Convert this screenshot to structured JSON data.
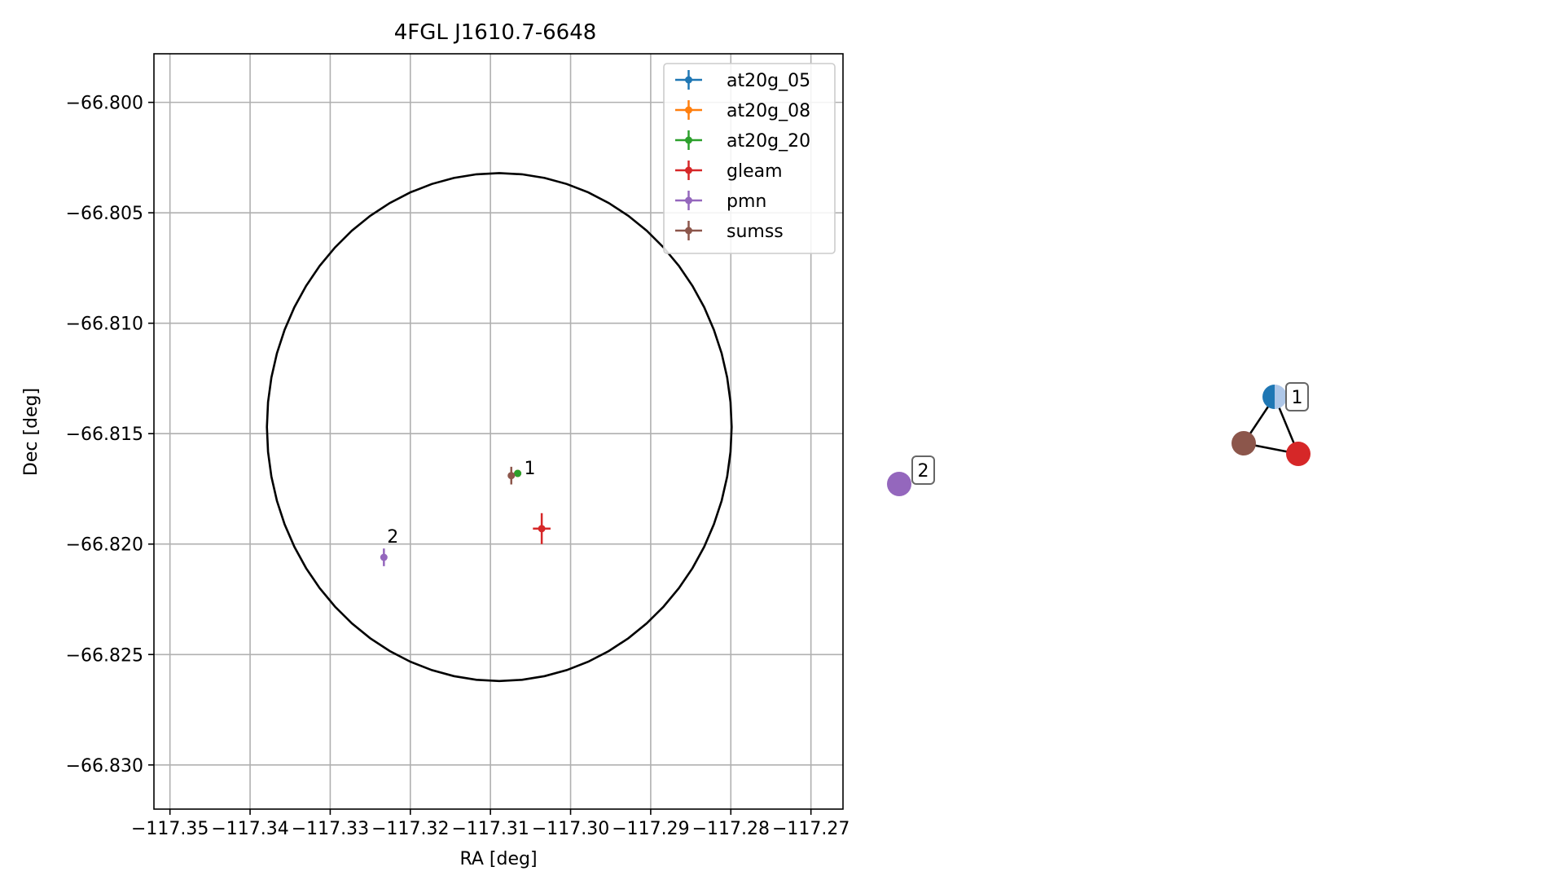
{
  "chart_data": [
    {
      "type": "scatter",
      "title": "4FGL J1610.7-6648",
      "xlabel": "RA [deg]",
      "ylabel": "Dec [deg]",
      "xlim": [
        -117.352,
        -117.266
      ],
      "ylim": [
        -66.832,
        -66.7978
      ],
      "grid": true,
      "x_ticks": [
        -117.35,
        -117.34,
        -117.33,
        -117.32,
        -117.31,
        -117.3,
        -117.29,
        -117.28,
        -117.27
      ],
      "x_tick_labels": [
        "−117.35",
        "−117.34",
        "−117.33",
        "−117.32",
        "−117.31",
        "−117.30",
        "−117.29",
        "−117.28",
        "−117.27"
      ],
      "y_ticks": [
        -66.8,
        -66.805,
        -66.81,
        -66.815,
        -66.82,
        -66.825,
        -66.83
      ],
      "y_tick_labels": [
        "−66.800",
        "−66.805",
        "−66.810",
        "−66.815",
        "−66.820",
        "−66.825",
        "−66.830"
      ],
      "legend_position": "top-right",
      "series": [
        {
          "name": "at20g_05",
          "color": "#1f77b4",
          "points": [
            {
              "x": -117.3066,
              "y": -66.8168,
              "xerr": 0.0004,
              "yerr": 0.0001
            }
          ]
        },
        {
          "name": "at20g_08",
          "color": "#ff7f0e",
          "points": [
            {
              "x": -117.3066,
              "y": -66.8168,
              "xerr": 0.0004,
              "yerr": 0.0001
            }
          ]
        },
        {
          "name": "at20g_20",
          "color": "#2ca02c",
          "points": [
            {
              "x": -117.3066,
              "y": -66.8168,
              "xerr": 0.0004,
              "yerr": 0.0001
            }
          ]
        },
        {
          "name": "gleam",
          "color": "#d62728",
          "points": [
            {
              "x": -117.3036,
              "y": -66.8193,
              "xerr": 0.0011,
              "yerr": 0.0007
            }
          ]
        },
        {
          "name": "pmn",
          "color": "#9467bd",
          "points": [
            {
              "x": -117.3233,
              "y": -66.8206,
              "xerr": 0.0002,
              "yerr": 0.0004
            }
          ]
        },
        {
          "name": "sumss",
          "color": "#8c564b",
          "points": [
            {
              "x": -117.3074,
              "y": -66.8169,
              "xerr": 0.0004,
              "yerr": 0.0004
            }
          ]
        }
      ],
      "circle": {
        "center_x": -117.3089,
        "center_y": -66.8147,
        "radius_x": 0.029,
        "radius_y": 0.0115
      },
      "annotations": [
        {
          "text": "1",
          "x": -117.3058,
          "y": -66.8168
        },
        {
          "text": "2",
          "x": -117.3229,
          "y": -66.8199
        }
      ]
    },
    {
      "type": "network",
      "nodes": [
        {
          "id": "2",
          "label": "2",
          "colors": [
            "#9467bd"
          ]
        },
        {
          "id": "1",
          "label": "1",
          "colors": [
            "#1f77b4",
            "#aec7e8"
          ]
        },
        {
          "id": "brown",
          "label": "",
          "colors": [
            "#8c564b"
          ]
        },
        {
          "id": "red",
          "label": "",
          "colors": [
            "#d62728"
          ]
        }
      ],
      "edges": [
        [
          "1",
          "brown"
        ],
        [
          "1",
          "red"
        ],
        [
          "brown",
          "red"
        ]
      ]
    }
  ]
}
